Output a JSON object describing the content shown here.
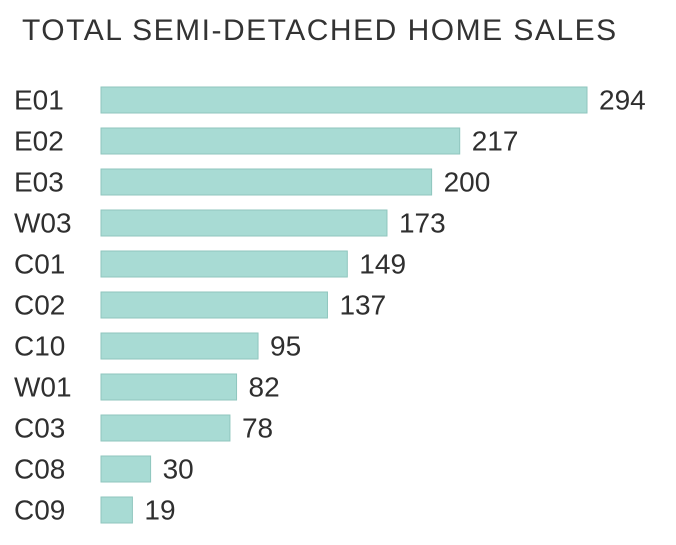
{
  "chart_data": {
    "type": "bar",
    "orientation": "horizontal",
    "title": "TOTAL SEMI-DETACHED HOME SALES",
    "xlabel": "",
    "ylabel": "",
    "categories": [
      "E01",
      "E02",
      "E03",
      "W03",
      "C01",
      "C02",
      "C10",
      "W01",
      "C03",
      "C08",
      "C09"
    ],
    "values": [
      294,
      217,
      200,
      173,
      149,
      137,
      95,
      82,
      78,
      30,
      19
    ],
    "xlim": [
      0,
      294
    ],
    "grid": false,
    "legend": "none",
    "bar_color": "#a8dbd4",
    "bar_stroke": "#8fc6be",
    "text_color": "#2f2f2f"
  }
}
